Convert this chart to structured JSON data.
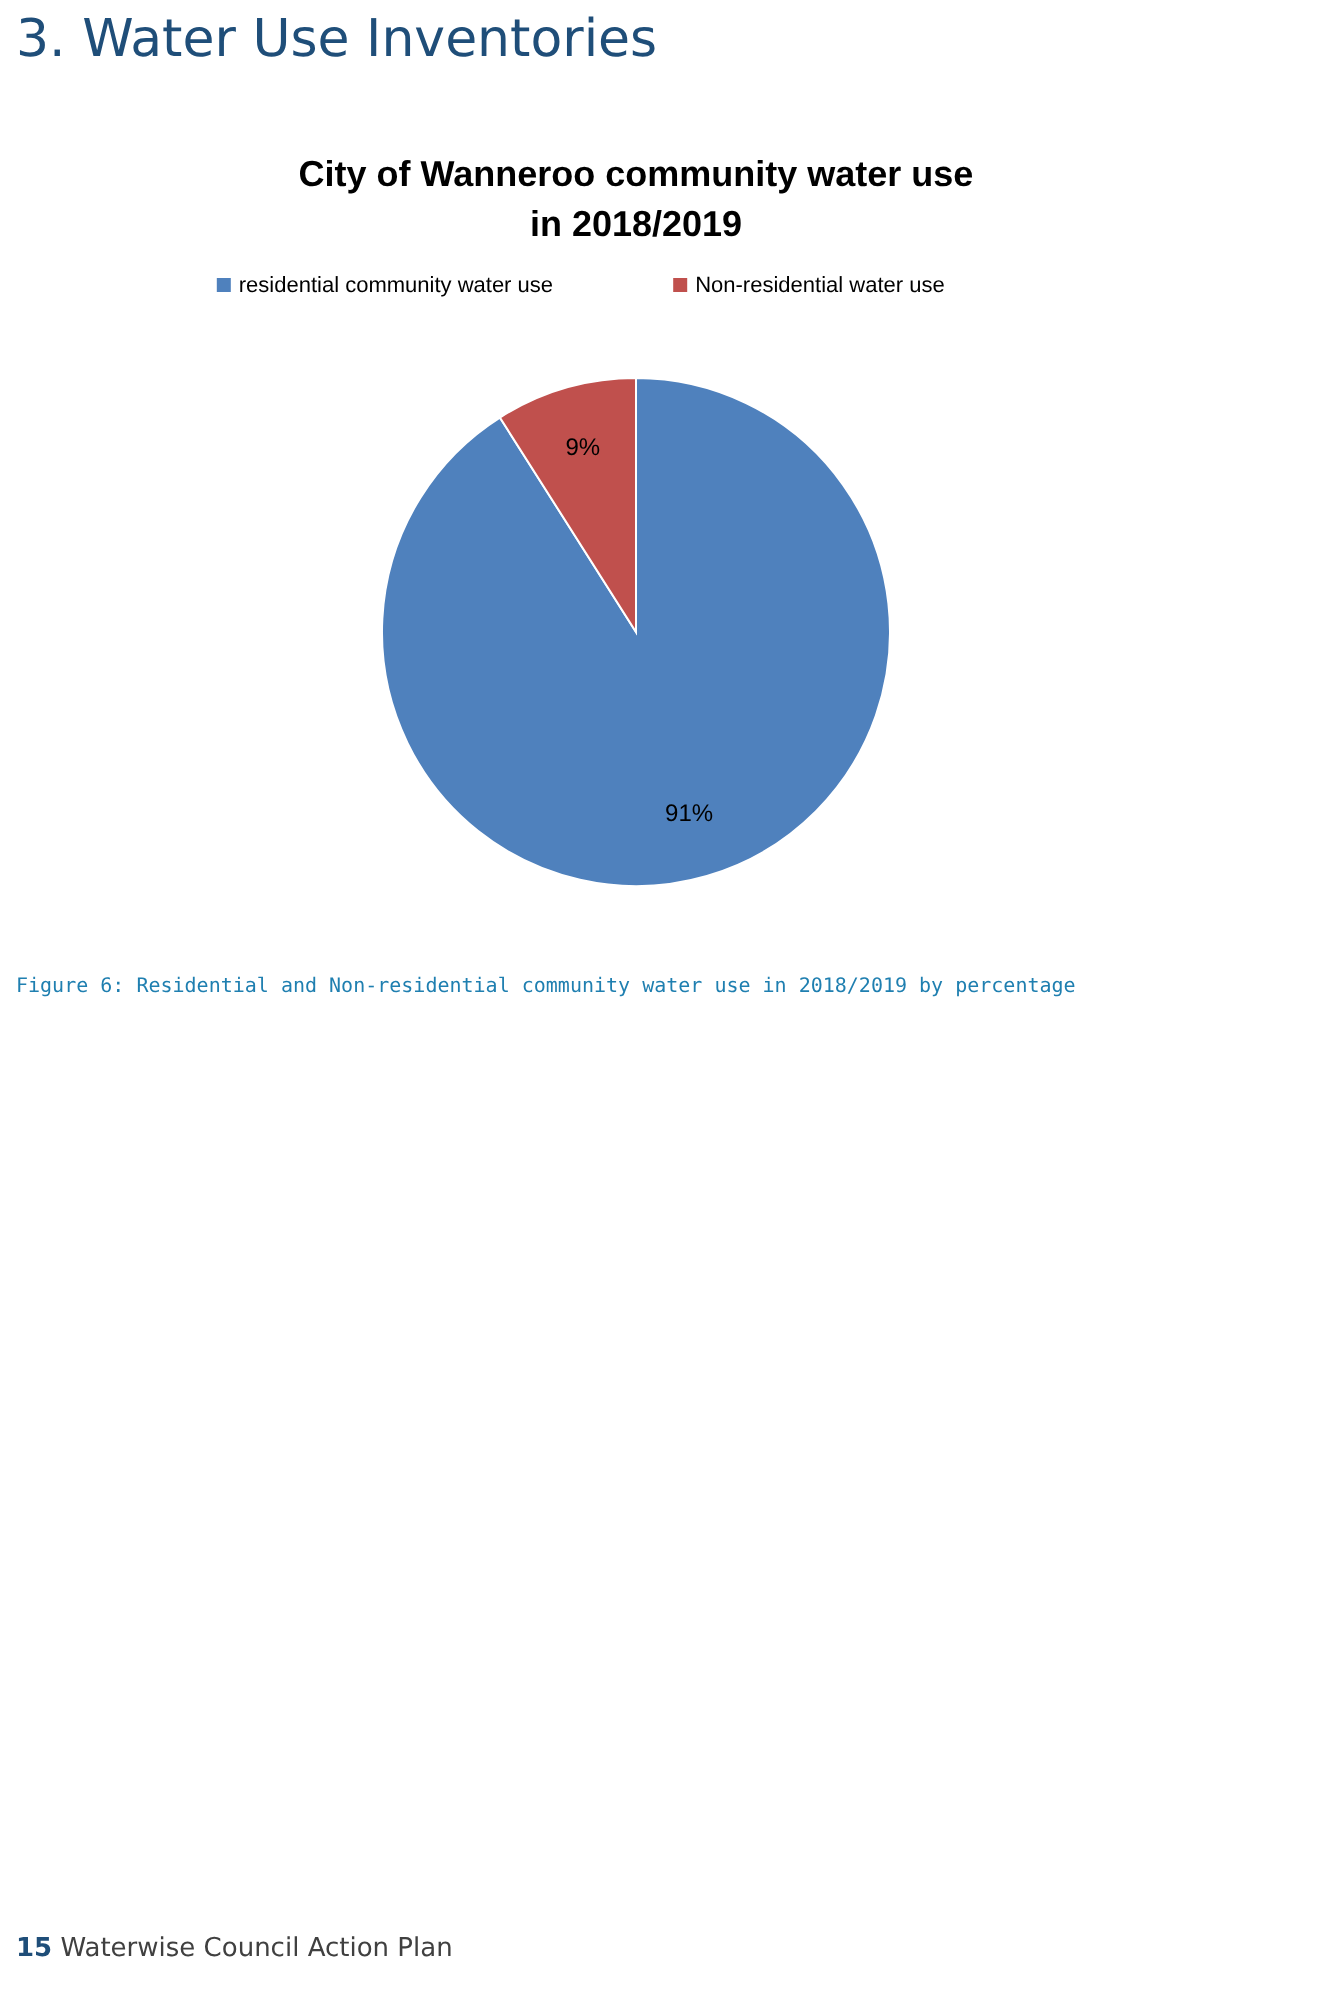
{
  "chart_data": {
    "type": "pie",
    "title": "City of Wanneroo community water use in 2018/2019",
    "categories": [
      "residential community water use",
      "Non-residential water use"
    ],
    "values": [
      91,
      9
    ],
    "colors": [
      "#4f81bd",
      "#c0504d"
    ],
    "value_labels": [
      "91%",
      "9%"
    ],
    "legend": "top",
    "annotations": [
      "3. Water Use Inventories",
      "Figure 6: Residential and Non-residential community water use in 2018/2019 by percentage",
      "15 Waterwise Council Action Plan"
    ]
  }
}
